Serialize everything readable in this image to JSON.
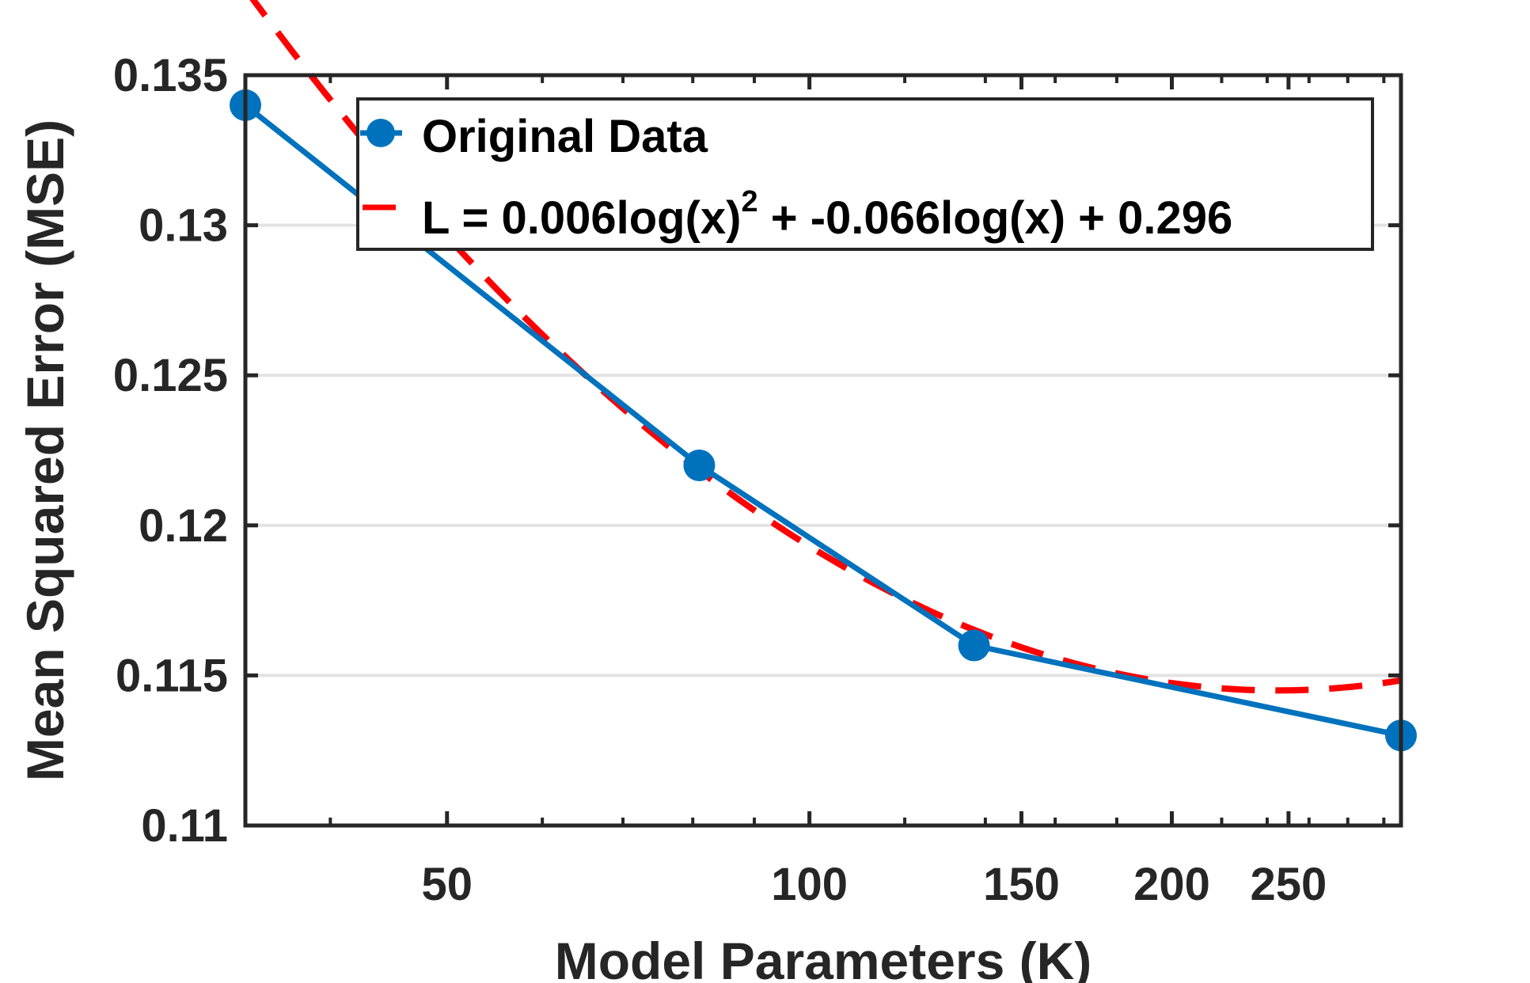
{
  "chart_data": {
    "type": "line",
    "xscale": "log",
    "xlabel": "Model Parameters (K)",
    "ylabel": "Mean Squared Error (MSE)",
    "xlim": [
      34,
      310
    ],
    "ylim": [
      0.11,
      0.135
    ],
    "xticks": [
      50,
      100,
      150,
      200,
      250
    ],
    "xtick_labels": [
      "50",
      "100",
      "150",
      "200",
      "250"
    ],
    "yticks": [
      0.11,
      0.115,
      0.12,
      0.125,
      0.13,
      0.135
    ],
    "ytick_labels": [
      "0.11",
      "0.115",
      "0.12",
      "0.125",
      "0.13",
      "0.135"
    ],
    "grid": "horizontal",
    "legend_position": "top-right",
    "series": [
      {
        "name": "Original Data",
        "style": "solid line with circle markers",
        "color": "#0072BD",
        "x": [
          34,
          81,
          137,
          310
        ],
        "y": [
          0.134,
          0.122,
          0.116,
          0.113
        ]
      },
      {
        "name": "L = 0.006log(x)^2 + -0.066log(x) + 0.296",
        "style": "dashed line",
        "color": "#FF0000",
        "fit": {
          "a": 0.006,
          "b": -0.066,
          "c": 0.296
        },
        "x_range": [
          34,
          310
        ]
      }
    ],
    "legend": {
      "entries": [
        {
          "label": "Original Data"
        },
        {
          "label_main": "L = 0.006log(x)",
          "label_sup": "2",
          "label_tail": " + -0.066log(x) + 0.296"
        }
      ]
    }
  }
}
